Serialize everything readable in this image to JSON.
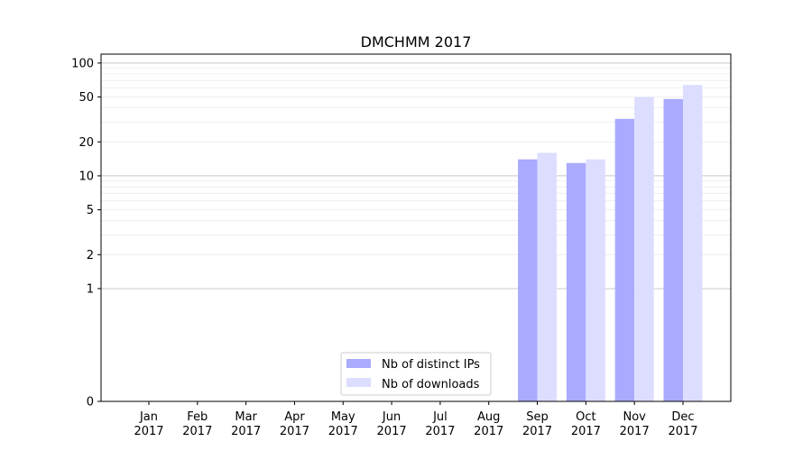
{
  "chart_data": {
    "type": "bar",
    "title": "DMCHMM 2017",
    "xlabel": "",
    "ylabel": "",
    "yscale": "symlog",
    "ylim": [
      0,
      120
    ],
    "yticks": [
      0,
      1,
      2,
      5,
      10,
      20,
      50,
      100
    ],
    "ytick_labels": [
      "0",
      "1",
      "2",
      "5",
      "10",
      "20",
      "50",
      "100"
    ],
    "grid": "horizontal",
    "legend_position": "lower-center",
    "categories": [
      {
        "month": "Jan",
        "year": "2017"
      },
      {
        "month": "Feb",
        "year": "2017"
      },
      {
        "month": "Mar",
        "year": "2017"
      },
      {
        "month": "Apr",
        "year": "2017"
      },
      {
        "month": "May",
        "year": "2017"
      },
      {
        "month": "Jun",
        "year": "2017"
      },
      {
        "month": "Jul",
        "year": "2017"
      },
      {
        "month": "Aug",
        "year": "2017"
      },
      {
        "month": "Sep",
        "year": "2017"
      },
      {
        "month": "Oct",
        "year": "2017"
      },
      {
        "month": "Nov",
        "year": "2017"
      },
      {
        "month": "Dec",
        "year": "2017"
      }
    ],
    "series": [
      {
        "name": "Nb of distinct IPs",
        "color": "#aaaaff",
        "values": [
          0,
          0,
          0,
          0,
          0,
          0,
          0,
          0,
          14,
          13,
          32,
          48
        ]
      },
      {
        "name": "Nb of downloads",
        "color": "#ddddff",
        "values": [
          0,
          0,
          0,
          0,
          0,
          0,
          0,
          0,
          16,
          14,
          50,
          64
        ]
      }
    ]
  }
}
